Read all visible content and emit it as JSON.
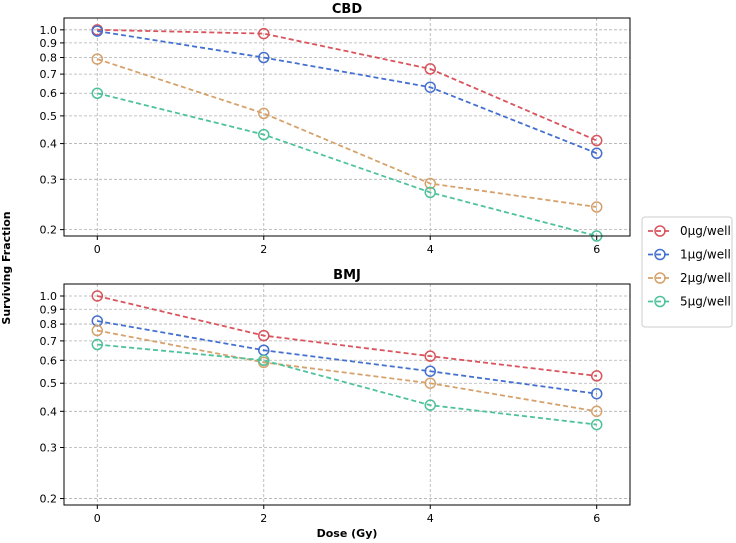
{
  "chart_data": [
    {
      "type": "line",
      "title": "CBD",
      "xlabel": "",
      "ylabel": "",
      "y_scale": "log",
      "xlim": [
        -0.4,
        6.4
      ],
      "ylim": [
        0.19,
        1.1
      ],
      "x_ticks": [
        "0",
        "2",
        "4",
        "6"
      ],
      "y_ticks": [
        "0.2",
        "0.3",
        "0.4",
        "0.5",
        "0.6",
        "0.7",
        "0.8",
        "0.9",
        "1.0"
      ],
      "grid": true,
      "x": [
        0,
        2,
        4,
        6
      ],
      "series": [
        {
          "name": "0µg/well",
          "color": "#d9545c",
          "values": [
            1.0,
            0.97,
            0.73,
            0.41
          ]
        },
        {
          "name": "1µg/well",
          "color": "#4470d0",
          "values": [
            0.99,
            0.8,
            0.63,
            0.37
          ]
        },
        {
          "name": "2µg/well",
          "color": "#d6a26c",
          "values": [
            0.79,
            0.51,
            0.29,
            0.24
          ]
        },
        {
          "name": "5µg/well",
          "color": "#4ec29c",
          "values": [
            0.6,
            0.43,
            0.27,
            0.19
          ]
        }
      ]
    },
    {
      "type": "line",
      "title": "BMJ",
      "xlabel": "Dose (Gy)",
      "ylabel": "",
      "y_scale": "log",
      "xlim": [
        -0.4,
        6.4
      ],
      "ylim": [
        0.19,
        1.1
      ],
      "x_ticks": [
        "0",
        "2",
        "4",
        "6"
      ],
      "y_ticks": [
        "0.2",
        "0.3",
        "0.4",
        "0.5",
        "0.6",
        "0.7",
        "0.8",
        "0.9",
        "1.0"
      ],
      "grid": true,
      "x": [
        0,
        2,
        4,
        6
      ],
      "series": [
        {
          "name": "0µg/well",
          "color": "#d9545c",
          "values": [
            1.0,
            0.73,
            0.62,
            0.53
          ]
        },
        {
          "name": "1µg/well",
          "color": "#4470d0",
          "values": [
            0.82,
            0.65,
            0.55,
            0.46
          ]
        },
        {
          "name": "2µg/well",
          "color": "#d6a26c",
          "values": [
            0.76,
            0.59,
            0.5,
            0.4
          ]
        },
        {
          "name": "5µg/well",
          "color": "#4ec29c",
          "values": [
            0.68,
            0.6,
            0.42,
            0.36
          ]
        }
      ]
    }
  ],
  "shared": {
    "ylabel": "Surviving Fraction",
    "legend_position": "right-center"
  }
}
